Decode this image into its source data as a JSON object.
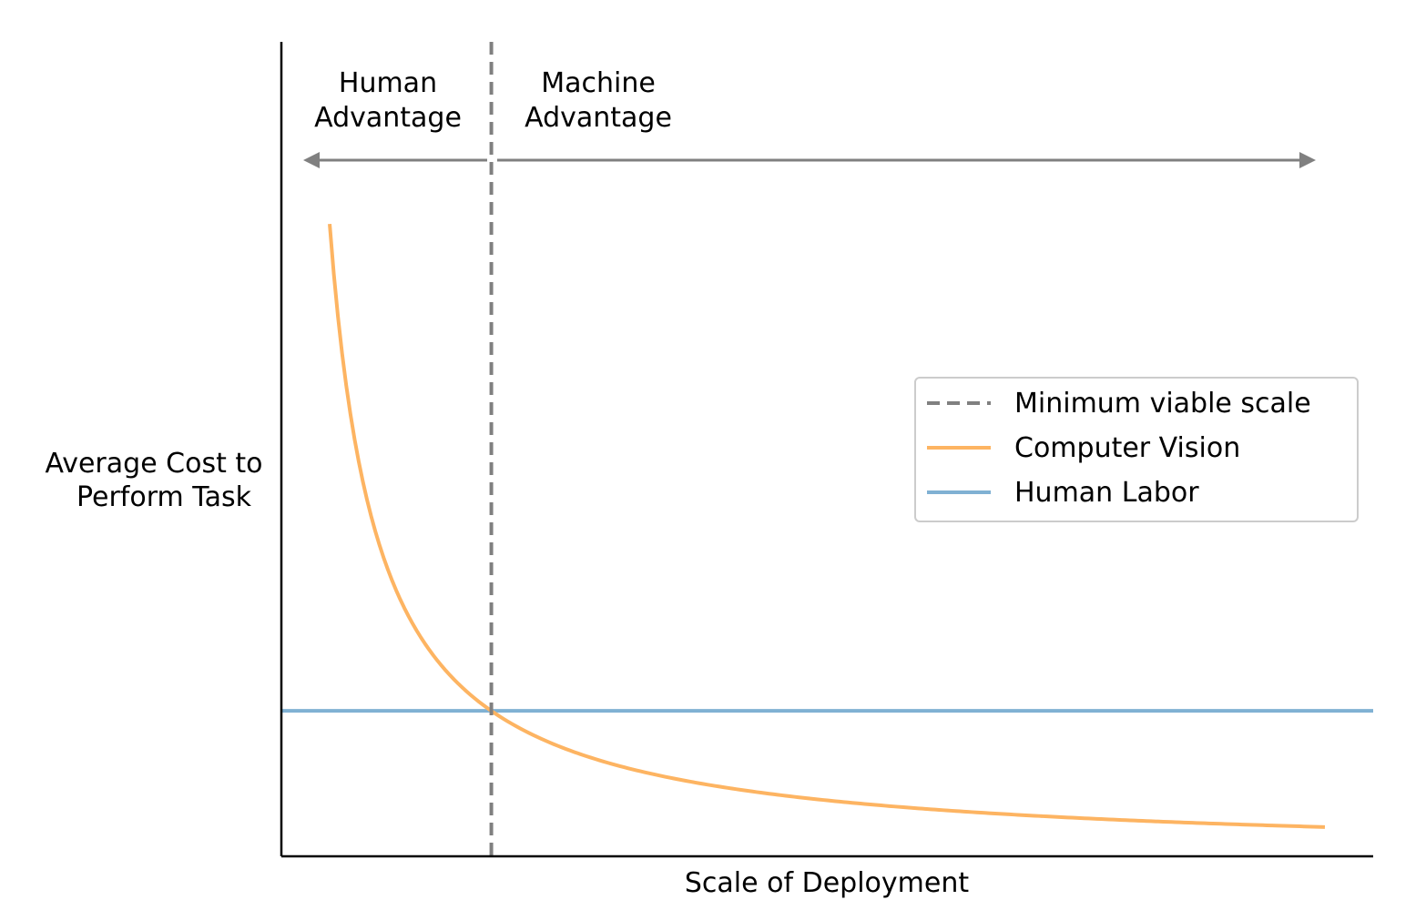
{
  "chart_data": {
    "type": "line",
    "xlabel": "Scale of Deployment",
    "ylabel_lines": [
      "Average Cost to",
      "Perform Task"
    ],
    "xlim": [
      0,
      5.2
    ],
    "ylim": [
      0,
      5.6
    ],
    "ticks": "none",
    "grid": false,
    "legend_placement": "center-right",
    "minimum_viable_scale": {
      "name": "Minimum viable scale",
      "x": 1.0,
      "color": "#808080",
      "style": "dashed"
    },
    "series": [
      {
        "name": "Computer Vision",
        "color": "#FDB462",
        "x": [
          0.23,
          0.3,
          0.4,
          0.5,
          0.6,
          0.7,
          0.8,
          0.9,
          1.0,
          1.2,
          1.5,
          2.0,
          2.5,
          3.0,
          3.5,
          4.0,
          4.5,
          4.97
        ],
        "y": [
          4.35,
          3.33,
          2.5,
          2.0,
          1.67,
          1.43,
          1.25,
          1.11,
          1.0,
          0.83,
          0.67,
          0.5,
          0.4,
          0.33,
          0.29,
          0.25,
          0.22,
          0.2
        ]
      },
      {
        "name": "Human Labor",
        "color": "#80B1D3",
        "x": [
          0,
          5.2
        ],
        "y": [
          1.0,
          1.0
        ]
      }
    ],
    "annotations": {
      "human_advantage": [
        "Human",
        "Advantage"
      ],
      "machine_advantage": [
        "Machine",
        "Advantage"
      ],
      "arrow_color": "#808080"
    }
  }
}
